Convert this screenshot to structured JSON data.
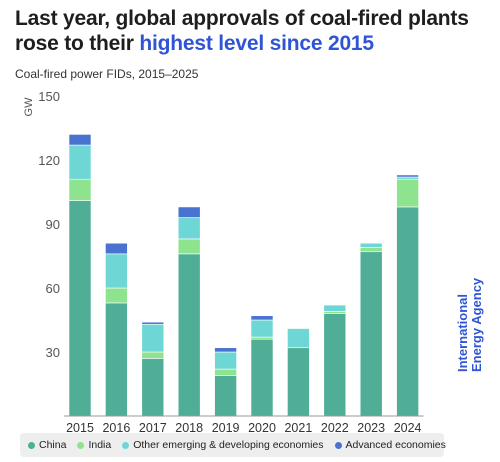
{
  "headline": {
    "part1": "Last year, global approvals of coal-fired plants rose to their ",
    "accent": "highest level since 2015"
  },
  "subtitle": "Coal-fired power FIDs, 2015–2025",
  "brand": {
    "line1": "International",
    "line2": "Energy Agency"
  },
  "colors": {
    "accent": "#2f55d4",
    "china": "#4fae95",
    "india": "#8ee38f",
    "other": "#6fd6d6",
    "advanced": "#4a73d1"
  },
  "chart_data": {
    "type": "bar",
    "stacked": true,
    "title": "Coal-fired power FIDs, 2015–2025",
    "ylabel": "GW",
    "xlabel": "",
    "ylim": [
      0,
      150
    ],
    "yticks": [
      30,
      60,
      90,
      120,
      150
    ],
    "grid": false,
    "legend": "bottom",
    "categories": [
      "2015",
      "2016",
      "2017",
      "2018",
      "2019",
      "2020",
      "2021",
      "2022",
      "2023",
      "2024"
    ],
    "series": [
      {
        "name": "China",
        "color": "#4fae95",
        "values": [
          101,
          53,
          27,
          76,
          19,
          36,
          32,
          48,
          77,
          98
        ]
      },
      {
        "name": "India",
        "color": "#8ee38f",
        "values": [
          10,
          7,
          3,
          7,
          3,
          1,
          0,
          1,
          2,
          13
        ]
      },
      {
        "name": "Other emerging & developing economies",
        "color": "#6fd6d6",
        "values": [
          16,
          16,
          13,
          10,
          8,
          8,
          9,
          3,
          2,
          1
        ]
      },
      {
        "name": "Advanced economies",
        "color": "#4a73d1",
        "values": [
          5,
          5,
          1,
          5,
          2,
          2,
          0,
          0,
          0,
          1
        ]
      }
    ]
  }
}
